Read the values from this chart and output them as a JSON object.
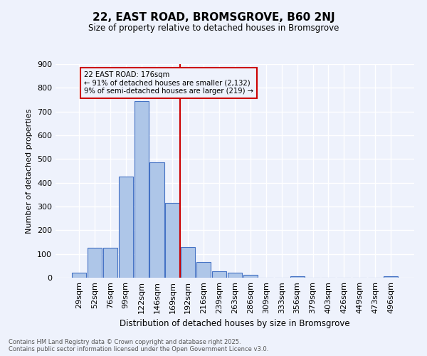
{
  "title": "22, EAST ROAD, BROMSGROVE, B60 2NJ",
  "subtitle": "Size of property relative to detached houses in Bromsgrove",
  "xlabel": "Distribution of detached houses by size in Bromsgrove",
  "ylabel": "Number of detached properties",
  "bin_labels": [
    "29sqm",
    "52sqm",
    "76sqm",
    "99sqm",
    "122sqm",
    "146sqm",
    "169sqm",
    "192sqm",
    "216sqm",
    "239sqm",
    "263sqm",
    "286sqm",
    "309sqm",
    "333sqm",
    "356sqm",
    "379sqm",
    "403sqm",
    "426sqm",
    "449sqm",
    "473sqm",
    "496sqm"
  ],
  "bar_heights": [
    20,
    125,
    125,
    425,
    745,
    485,
    315,
    130,
    65,
    27,
    20,
    12,
    0,
    0,
    7,
    0,
    0,
    0,
    0,
    0,
    7
  ],
  "bar_color": "#aec6e8",
  "bar_edge_color": "#4472c4",
  "vline_x_index": 7,
  "vline_color": "#cc0000",
  "annotation_line1": "22 EAST ROAD: 176sqm",
  "annotation_line2": "← 91% of detached houses are smaller (2,132)",
  "annotation_line3": "9% of semi-detached houses are larger (219) →",
  "annotation_box_color": "#cc0000",
  "ylim": [
    0,
    900
  ],
  "yticks": [
    0,
    100,
    200,
    300,
    400,
    500,
    600,
    700,
    800,
    900
  ],
  "background_color": "#eef2fc",
  "grid_color": "#ffffff",
  "footer_line1": "Contains HM Land Registry data © Crown copyright and database right 2025.",
  "footer_line2": "Contains public sector information licensed under the Open Government Licence v3.0."
}
